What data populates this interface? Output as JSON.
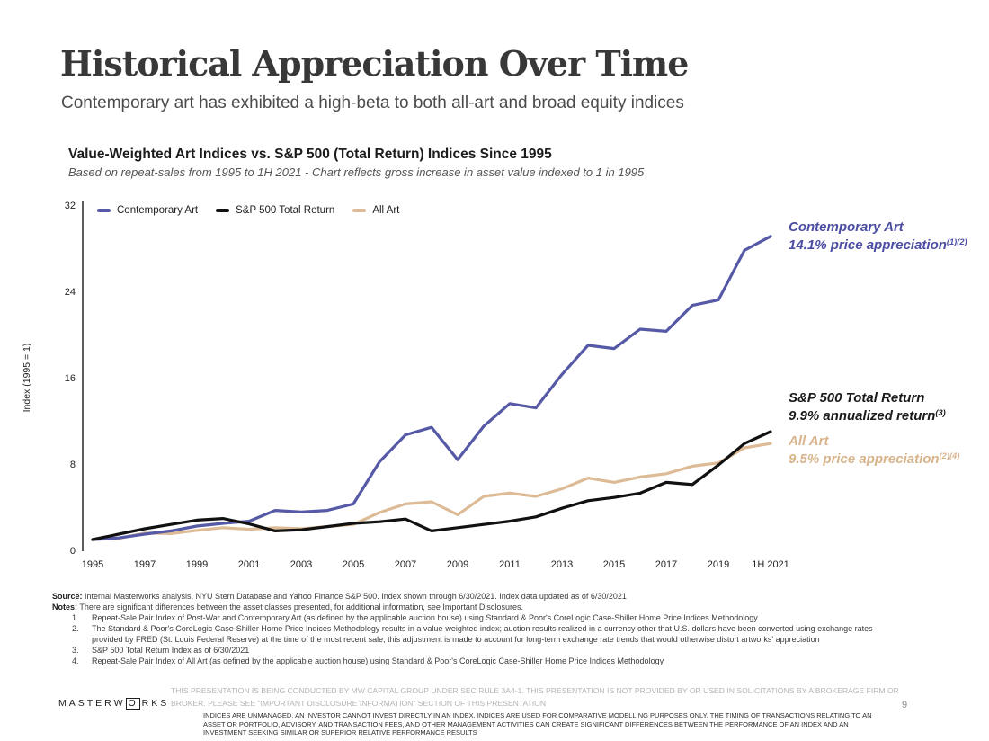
{
  "page": {
    "title": "Historical Appreciation Over Time",
    "subtitle": "Contemporary art has exhibited a high-beta to both all-art and broad equity indices"
  },
  "chart": {
    "title": "Value-Weighted Art Indices vs. S&P 500 (Total Return) Indices Since 1995",
    "subtitle": "Based on repeat-sales from 1995 to 1H 2021 - Chart reflects gross increase in asset value indexed to 1 in 1995"
  },
  "chart_data": {
    "type": "line",
    "title": "Value-Weighted Art Indices vs. S&P 500 (Total Return) Indices Since 1995",
    "subtitle": "Based on repeat-sales from 1995 to 1H 2021 - Chart reflects gross increase in asset value indexed to 1 in 1995",
    "xlabel": "",
    "ylabel": "Index (1995 = 1)",
    "ylim": [
      0,
      32
    ],
    "y_ticks": [
      0,
      8,
      16,
      24,
      32
    ],
    "grid": false,
    "legend_position": "top-left",
    "x": [
      "1995",
      "1996",
      "1997",
      "1998",
      "1999",
      "2000",
      "2001",
      "2002",
      "2003",
      "2004",
      "2005",
      "2006",
      "2007",
      "2008",
      "2009",
      "2010",
      "2011",
      "2012",
      "2013",
      "2014",
      "2015",
      "2016",
      "2017",
      "2018",
      "2019",
      "2020",
      "1H 2021"
    ],
    "x_tick_labels": [
      "1995",
      "1997",
      "1999",
      "2001",
      "2003",
      "2005",
      "2007",
      "2009",
      "2011",
      "2013",
      "2015",
      "2017",
      "2019",
      "1H 2021"
    ],
    "series": [
      {
        "name": "Contemporary Art",
        "color": "#5659A5",
        "values": [
          1.0,
          1.15,
          1.5,
          1.8,
          2.25,
          2.5,
          2.7,
          3.7,
          3.55,
          3.7,
          4.3,
          8.2,
          10.7,
          11.4,
          8.4,
          11.5,
          13.6,
          13.2,
          16.3,
          19.0,
          18.7,
          20.5,
          20.3,
          22.7,
          23.2,
          27.8,
          29.1
        ]
      },
      {
        "name": "S&P 500 Total Return",
        "color": "#111111",
        "values": [
          1.0,
          1.5,
          2.0,
          2.4,
          2.8,
          2.95,
          2.45,
          1.8,
          1.9,
          2.2,
          2.5,
          2.65,
          2.9,
          1.8,
          2.1,
          2.4,
          2.7,
          3.1,
          3.9,
          4.6,
          4.9,
          5.3,
          6.3,
          6.1,
          7.9,
          9.9,
          11.0
        ]
      },
      {
        "name": "All Art",
        "color": "#DCBB96",
        "values": [
          1.0,
          1.1,
          1.6,
          1.55,
          1.85,
          2.1,
          1.95,
          2.1,
          2.0,
          2.2,
          2.4,
          3.5,
          4.3,
          4.5,
          3.3,
          5.0,
          5.3,
          5.0,
          5.7,
          6.7,
          6.3,
          6.8,
          7.1,
          7.8,
          8.1,
          9.5,
          9.9
        ]
      }
    ]
  },
  "annotations": {
    "contemporary": {
      "line1": "Contemporary Art",
      "line2": "14.1% price appreciation",
      "sup": "(1)(2)",
      "color": "#4B4EA2"
    },
    "sp500": {
      "line1": "S&P 500 Total Return",
      "line2": "9.9% annualized return",
      "sup": "(3)",
      "color": "#1a1a1a"
    },
    "all_art": {
      "line1": "All Art",
      "line2": "9.5% price appreciation",
      "sup": "(2)(4)",
      "color": "#D8B48C"
    }
  },
  "footnotes": {
    "source_label": "Source:",
    "source_text": " Internal Masterworks analysis, NYU Stern Database and Yahoo Finance S&P 500. Index shown through 6/30/2021. Index data updated as of 6/30/2021",
    "notes_label": "Notes:",
    "notes_text": " There are significant differences between the asset classes presented, for additional information, see Important Disclosures.",
    "items": [
      {
        "num": "1.",
        "text": "Repeat-Sale Pair Index of Post-War and Contemporary Art (as defined by the applicable auction house) using Standard & Poor's CoreLogic Case-Shiller Home Price Indices Methodology"
      },
      {
        "num": "2.",
        "text": "The Standard & Poor's CoreLogic Case-Shiller Home Price Indices Methodology results in a value-weighted index; auction results realized in a currency other that U.S. dollars have been converted using exchange rates provided by FRED (St. Louis Federal Reserve) at the time of the most recent sale; this adjustment is made to account for long-term exchange rate trends that would otherwise distort artworks' appreciation"
      },
      {
        "num": "3.",
        "text": "S&P 500 Total Return Index as of 6/30/2021"
      },
      {
        "num": "4.",
        "text": "Repeat-Sale Pair Index of All Art (as defined by the applicable auction house) using Standard & Poor's CoreLogic Case-Shiller Home Price Indices Methodology"
      }
    ]
  },
  "footer": {
    "logo_part1": "MASTERW",
    "logo_boxed_letter": "O",
    "logo_part2": "RKS",
    "disclaimer_primary": "THIS PRESENTATION IS BEING CONDUCTED BY MW CAPITAL GROUP UNDER SEC RULE 3A4-1. THIS PRESENTATION IS NOT PROVIDED BY OR USED IN SOLICITATIONS BY A BROKERAGE FIRM OR BROKER. PLEASE SEE \"IMPORTANT DISCLOSURE INFORMATION\" SECTION OF THIS PRESENTATION",
    "disclaimer_secondary": "INDICES ARE UNMANAGED. AN INVESTOR CANNOT INVEST DIRECTLY IN AN INDEX. INDICES ARE USED FOR COMPARATIVE MODELLING PURPOSES ONLY. THE TIMING OF TRANSACTIONS RELATING TO AN ASSET OR PORTFOLIO, ADVISORY, AND TRANSACTION FEES, AND OTHER MANAGEMENT ACTIVITIES CAN CREATE SIGNIFICANT DIFFERENCES BETWEEN THE PERFORMANCE OF AN INDEX AND AN INVESTMENT SEEKING SIMILAR OR SUPERIOR RELATIVE PERFORMANCE RESULTS",
    "page_number": "9"
  }
}
